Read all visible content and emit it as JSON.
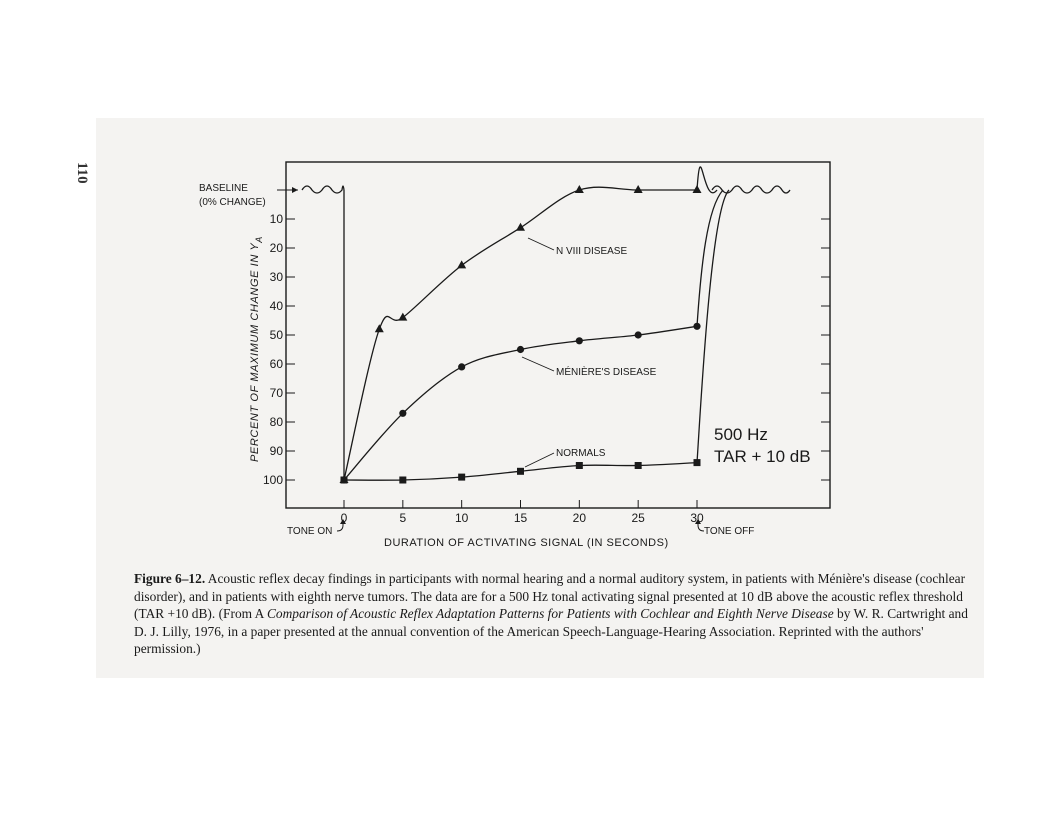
{
  "page": {
    "number": "110"
  },
  "chart_data": {
    "type": "line",
    "ylabel": "PERCENT OF MAXIMUM CHANGE IN Y",
    "ylabel_subscript": "A",
    "xlabel": "DURATION OF ACTIVATING SIGNAL (IN SECONDS)",
    "xlim": [
      0,
      30
    ],
    "ylim": [
      0,
      100
    ],
    "y_inverted": true,
    "x_ticks": [
      "0",
      "5",
      "10",
      "15",
      "20",
      "25",
      "30"
    ],
    "y_ticks": [
      "10",
      "20",
      "30",
      "40",
      "50",
      "60",
      "70",
      "80",
      "90",
      "100"
    ],
    "baseline_label_line1": "BASELINE",
    "baseline_label_line2": "(0% CHANGE)",
    "tone_on_label": "TONE ON",
    "tone_off_label": "TONE OFF",
    "stimulus_line1": "500 Hz",
    "stimulus_line2": "TAR + 10 dB",
    "series": [
      {
        "name": "N VIII DISEASE",
        "marker": "triangle",
        "x": [
          0,
          3,
          5,
          10,
          15,
          20,
          25,
          30
        ],
        "y": [
          100,
          48,
          44,
          26,
          13,
          0,
          0,
          0
        ]
      },
      {
        "name": "MÉNIÈRE'S DISEASE",
        "marker": "circle",
        "x": [
          0,
          5,
          10,
          15,
          20,
          25,
          30
        ],
        "y": [
          100,
          77,
          61,
          55,
          52,
          50,
          47
        ]
      },
      {
        "name": "NORMALS",
        "marker": "square",
        "x": [
          0,
          5,
          10,
          15,
          20,
          25,
          30
        ],
        "y": [
          100,
          100,
          99,
          97,
          95,
          95,
          94
        ]
      }
    ]
  },
  "caption": {
    "figure_label": "Figure 6–12.",
    "text_before": " Acoustic reflex decay findings in participants with normal hearing and a normal auditory system, in patients with Ménière's disease (cochlear disorder), and in patients with eighth nerve tumors. The data are for a 500 Hz tonal activating signal presented at 10 dB above the acoustic reflex threshold (TAR +10 dB). (From A ",
    "italic_title": "Comparison of Acoustic Reflex Adaptation Patterns for Patients with Cochlear and Eighth Nerve Disease",
    "text_after": " by W. R. Cartwright and D. J. Lilly, 1976, in a paper presented at the annual convention of the American Speech-Language-Hearing Association. Reprinted with the authors' permission.)"
  }
}
